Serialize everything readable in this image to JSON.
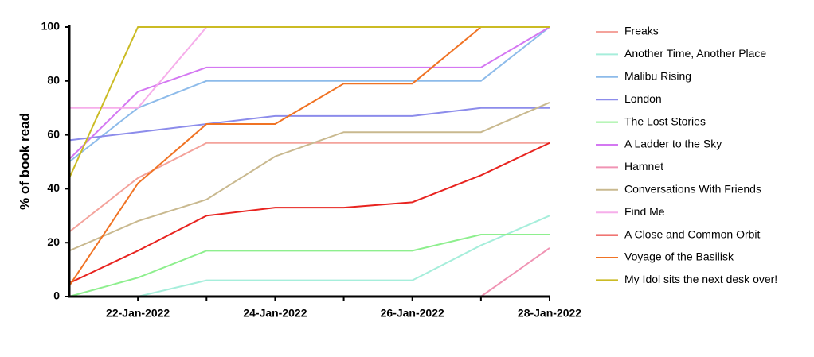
{
  "chart_data": {
    "type": "line",
    "y_label": "% of book read",
    "categories": [
      null,
      "22-Jan-2022",
      null,
      "24-Jan-2022",
      null,
      "26-Jan-2022",
      null,
      "28-Jan-2022"
    ],
    "ylim": [
      0,
      100
    ],
    "yticks": [
      0,
      20,
      40,
      60,
      80,
      100
    ],
    "legend": "right",
    "series": [
      {
        "name": "Freaks",
        "color": "#f4a39c",
        "values": [
          24,
          44,
          57,
          57,
          57,
          57,
          57,
          57
        ]
      },
      {
        "name": "Another Time, Another Place",
        "color": "#a6eedb",
        "values": [
          0,
          0,
          6,
          6,
          6,
          6,
          19,
          30
        ]
      },
      {
        "name": "Malibu Rising",
        "color": "#8dbbea",
        "values": [
          50,
          70,
          80,
          80,
          80,
          80,
          80,
          100
        ]
      },
      {
        "name": "London",
        "color": "#8c8ceb",
        "values": [
          58,
          61,
          64,
          67,
          67,
          67,
          70,
          70
        ]
      },
      {
        "name": "The Lost Stories",
        "color": "#8eef8e",
        "values": [
          0,
          7,
          17,
          17,
          17,
          17,
          23,
          23
        ]
      },
      {
        "name": "A Ladder to the Sky",
        "color": "#d478f2",
        "values": [
          51,
          76,
          85,
          85,
          85,
          85,
          85,
          100
        ]
      },
      {
        "name": "Hamnet",
        "color": "#f094b4",
        "values": [
          0,
          0,
          0,
          0,
          0,
          0,
          0,
          18
        ]
      },
      {
        "name": "Conversations With Friends",
        "color": "#c9b98f",
        "values": [
          17,
          28,
          36,
          52,
          61,
          61,
          61,
          72
        ]
      },
      {
        "name": "Find Me",
        "color": "#f6aeea",
        "values": [
          70,
          70,
          100,
          100,
          100,
          100,
          100,
          100
        ]
      },
      {
        "name": "A Close and Common Orbit",
        "color": "#e8231f",
        "values": [
          5,
          17,
          30,
          33,
          33,
          35,
          45,
          57
        ]
      },
      {
        "name": "Voyage of the Basilisk",
        "color": "#f07324",
        "values": [
          4,
          42,
          64,
          64,
          79,
          79,
          100,
          100
        ]
      },
      {
        "name": "My Idol sits the next desk over!",
        "color": "#cbbb24",
        "values": [
          44,
          100,
          100,
          100,
          100,
          100,
          100,
          100
        ]
      }
    ]
  }
}
